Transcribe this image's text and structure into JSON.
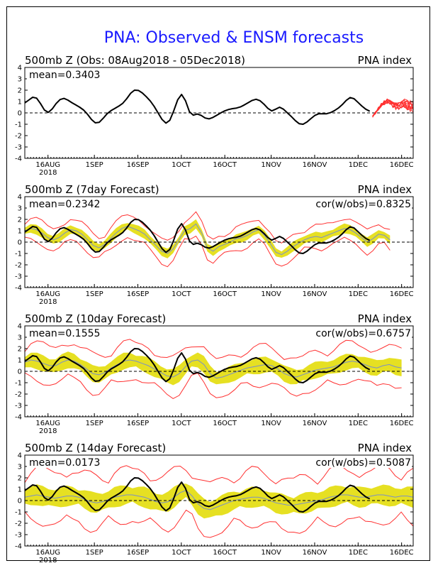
{
  "figure": {
    "title": "PNA: Observed & ENSM forecasts",
    "title_color": "#1a1aff"
  },
  "x_ticks": {
    "labels": [
      "16AUG",
      "1SEP",
      "16SEP",
      "1OCT",
      "16OCT",
      "1NOV",
      "16NOV",
      "1DEC",
      "16DEC"
    ],
    "year_label": "2018"
  },
  "colors": {
    "observed": "#000000",
    "ensemble_members": "#ff3030",
    "ensemble_spread": "#e6e022",
    "ensemble_mean": "#7a8fc8",
    "zero_line": "#000000"
  },
  "chart_data": [
    {
      "type": "line",
      "title_left": "500mb  Z  (Obs: 08Aug2018 - 05Dec2018)",
      "title_right": "PNA index",
      "stat_left": "mean=0.3403",
      "stat_right": "",
      "ylim": [
        -4,
        4
      ],
      "yticks": [
        -4,
        -3,
        -2,
        -1,
        0,
        1,
        2,
        3,
        4
      ],
      "x_start": "2018-08-08",
      "x_end": "2018-12-20",
      "tick_dates": [
        "2018-08-16",
        "2018-09-01",
        "2018-09-16",
        "2018-10-01",
        "2018-10-16",
        "2018-11-01",
        "2018-11-16",
        "2018-12-01",
        "2018-12-16"
      ],
      "observed": {
        "start": "2018-08-08",
        "values": [
          0.8,
          1.1,
          1.5,
          1.4,
          0.9,
          0.1,
          -0.1,
          0.3,
          0.9,
          1.2,
          1.4,
          1.1,
          0.9,
          0.7,
          0.5,
          0.3,
          -0.1,
          -0.6,
          -1.0,
          -0.9,
          -0.5,
          0.0,
          0.2,
          0.4,
          0.6,
          0.8,
          1.2,
          1.8,
          2.1,
          2.0,
          1.8,
          1.4,
          1.1,
          0.6,
          0.0,
          -0.6,
          -1.1,
          -0.8,
          0.1,
          1.3,
          1.9,
          1.4,
          -0.4,
          -0.2,
          0.0,
          -0.2,
          -0.5,
          -0.6,
          -0.4,
          -0.2,
          0.0,
          0.2,
          0.3,
          0.4,
          0.4,
          0.5,
          0.7,
          0.9,
          1.1,
          1.3,
          1.1,
          0.8,
          0.4,
          0.0,
          0.3,
          0.7,
          0.3,
          0.0,
          -0.3,
          -0.7,
          -1.0,
          -1.1,
          -0.8,
          -0.5,
          -0.2,
          0.0,
          -0.1,
          -0.1,
          0.0,
          0.2,
          0.4,
          0.7,
          1.1,
          1.5,
          1.3,
          0.9,
          0.6,
          0.3,
          0.1
        ]
      },
      "ensemble": {
        "start": "2018-12-06",
        "base": [
          -0.3,
          0.0,
          0.4,
          0.7,
          0.9,
          1.0,
          0.9,
          0.7,
          0.6,
          0.6,
          0.7,
          0.8,
          0.7,
          0.6,
          0.5
        ],
        "members": 10
      }
    },
    {
      "type": "line",
      "title_left": "500mb  Z  (7day Forecast)",
      "title_right": "PNA index",
      "stat_left": "mean=0.2342",
      "stat_right": "cor(w/obs)=0.8325",
      "ylim": [
        -4,
        4
      ],
      "yticks": [
        -4,
        -3,
        -2,
        -1,
        0,
        1,
        2,
        3,
        4
      ],
      "x_start": "2018-08-08",
      "x_end": "2018-12-20",
      "tick_dates": [
        "2018-08-16",
        "2018-09-01",
        "2018-09-16",
        "2018-10-01",
        "2018-10-16",
        "2018-11-01",
        "2018-11-16",
        "2018-12-01",
        "2018-12-16"
      ],
      "observed": {
        "start": "2018-08-08",
        "values": [
          0.8,
          1.1,
          1.5,
          1.4,
          0.9,
          0.1,
          -0.1,
          0.3,
          0.9,
          1.2,
          1.4,
          1.1,
          0.9,
          0.7,
          0.5,
          0.3,
          -0.1,
          -0.6,
          -1.0,
          -0.9,
          -0.5,
          0.0,
          0.2,
          0.4,
          0.6,
          0.8,
          1.2,
          1.8,
          2.1,
          2.0,
          1.8,
          1.4,
          1.1,
          0.6,
          0.0,
          -0.6,
          -1.1,
          -0.8,
          0.1,
          1.3,
          1.9,
          1.4,
          -0.4,
          -0.2,
          0.0,
          -0.2,
          -0.5,
          -0.6,
          -0.4,
          -0.2,
          0.0,
          0.2,
          0.3,
          0.4,
          0.4,
          0.5,
          0.7,
          0.9,
          1.1,
          1.3,
          1.1,
          0.8,
          0.4,
          0.0,
          0.3,
          0.7,
          0.3,
          0.0,
          -0.3,
          -0.7,
          -1.0,
          -1.1,
          -0.8,
          -0.5,
          -0.2,
          0.0,
          -0.1,
          -0.1,
          0.0,
          0.2,
          0.4,
          0.7,
          1.1,
          1.5,
          1.3,
          0.9,
          0.6,
          0.3,
          0.1
        ]
      },
      "forecast": {
        "start": "2018-08-08",
        "end": "2018-12-12",
        "mean_values": [
          1.0,
          1.2,
          1.1,
          0.8,
          0.4,
          0.2,
          0.4,
          0.8,
          1.1,
          1.0,
          0.7,
          0.2,
          -0.3,
          -0.5,
          -0.2,
          0.3,
          0.8,
          1.2,
          1.4,
          1.2,
          1.0,
          0.7,
          0.2,
          -0.3,
          -0.8,
          -1.0,
          -0.6,
          0.2,
          1.0,
          1.2,
          1.6,
          0.8,
          -0.5,
          -0.8,
          -0.4,
          -0.2,
          0.0,
          0.3,
          0.4,
          0.6,
          0.9,
          1.1,
          0.6,
          -0.1,
          -0.9,
          -1.1,
          -0.8,
          -0.4,
          -0.1,
          0.2,
          0.4,
          0.5,
          0.4,
          0.6,
          0.8,
          1.0,
          1.2,
          1.1,
          0.8,
          0.4,
          0.0,
          0.3,
          0.7,
          0.6,
          0.2
        ],
        "spread": 0.35,
        "member_spread": 0.75
      }
    },
    {
      "type": "line",
      "title_left": "500mb  Z  (10day Forecast)",
      "title_right": "PNA index",
      "stat_left": "mean=0.1555",
      "stat_right": "cor(w/obs)=0.6757",
      "ylim": [
        -4,
        4
      ],
      "yticks": [
        -4,
        -3,
        -2,
        -1,
        0,
        1,
        2,
        3,
        4
      ],
      "x_start": "2018-08-08",
      "x_end": "2018-12-20",
      "tick_dates": [
        "2018-08-16",
        "2018-09-01",
        "2018-09-16",
        "2018-10-01",
        "2018-10-16",
        "2018-11-01",
        "2018-11-16",
        "2018-12-01",
        "2018-12-16"
      ],
      "observed": {
        "start": "2018-08-08",
        "values": [
          0.8,
          1.1,
          1.5,
          1.4,
          0.9,
          0.1,
          -0.1,
          0.3,
          0.9,
          1.2,
          1.4,
          1.1,
          0.9,
          0.7,
          0.5,
          0.3,
          -0.1,
          -0.6,
          -1.0,
          -0.9,
          -0.5,
          0.0,
          0.2,
          0.4,
          0.6,
          0.8,
          1.2,
          1.8,
          2.1,
          2.0,
          1.8,
          1.4,
          1.1,
          0.6,
          0.0,
          -0.6,
          -1.1,
          -0.8,
          0.1,
          1.3,
          1.9,
          1.4,
          -0.4,
          -0.2,
          0.0,
          -0.2,
          -0.5,
          -0.6,
          -0.4,
          -0.2,
          0.0,
          0.2,
          0.3,
          0.4,
          0.4,
          0.5,
          0.7,
          0.9,
          1.1,
          1.3,
          1.1,
          0.8,
          0.4,
          0.0,
          0.3,
          0.7,
          0.3,
          0.0,
          -0.3,
          -0.7,
          -1.0,
          -1.1,
          -0.8,
          -0.5,
          -0.2,
          0.0,
          -0.1,
          -0.1,
          0.0,
          0.2,
          0.4,
          0.7,
          1.1,
          1.5,
          1.3,
          0.9,
          0.6,
          0.3,
          0.1
        ]
      },
      "forecast": {
        "start": "2018-08-08",
        "end": "2018-12-16",
        "mean_values": [
          0.8,
          1.0,
          0.9,
          0.7,
          0.5,
          0.5,
          0.8,
          1.0,
          0.9,
          0.6,
          0.2,
          -0.2,
          -0.3,
          -0.1,
          0.3,
          0.6,
          0.9,
          1.0,
          0.9,
          0.7,
          0.5,
          0.2,
          -0.1,
          -0.4,
          -0.5,
          -0.2,
          0.4,
          0.9,
          1.0,
          0.6,
          -0.2,
          -0.6,
          -0.5,
          -0.3,
          -0.1,
          0.1,
          0.3,
          0.4,
          0.5,
          0.6,
          0.5,
          0.2,
          -0.2,
          -0.4,
          -0.5,
          -0.3,
          -0.1,
          0.1,
          0.2,
          0.3,
          0.4,
          0.6,
          0.8,
          0.9,
          0.8,
          0.6,
          0.4,
          0.3,
          0.5,
          0.6,
          0.4,
          0.3
        ],
        "spread": 0.6,
        "member_spread": 1.2
      }
    },
    {
      "type": "line",
      "title_left": "500mb  Z  (14day Forecast)",
      "title_right": "PNA index",
      "stat_left": "mean=0.0173",
      "stat_right": "cor(w/obs)=0.5087",
      "ylim": [
        -4,
        4
      ],
      "yticks": [
        -4,
        -3,
        -2,
        -1,
        0,
        1,
        2,
        3,
        4
      ],
      "x_start": "2018-08-08",
      "x_end": "2018-12-20",
      "tick_dates": [
        "2018-08-16",
        "2018-09-01",
        "2018-09-16",
        "2018-10-01",
        "2018-10-16",
        "2018-11-01",
        "2018-11-16",
        "2018-12-01",
        "2018-12-16"
      ],
      "observed": {
        "start": "2018-08-08",
        "values": [
          0.8,
          1.1,
          1.5,
          1.4,
          0.9,
          0.1,
          -0.1,
          0.3,
          0.9,
          1.2,
          1.4,
          1.1,
          0.9,
          0.7,
          0.5,
          0.3,
          -0.1,
          -0.6,
          -1.0,
          -0.9,
          -0.5,
          0.0,
          0.2,
          0.4,
          0.6,
          0.8,
          1.2,
          1.8,
          2.1,
          2.0,
          1.8,
          1.4,
          1.1,
          0.6,
          0.0,
          -0.6,
          -1.1,
          -0.8,
          0.1,
          1.3,
          1.9,
          1.4,
          -0.4,
          -0.2,
          0.0,
          -0.2,
          -0.5,
          -0.6,
          -0.4,
          -0.2,
          0.0,
          0.2,
          0.3,
          0.4,
          0.4,
          0.5,
          0.7,
          0.9,
          1.1,
          1.3,
          1.1,
          0.8,
          0.4,
          0.0,
          0.3,
          0.7,
          0.3,
          0.0,
          -0.3,
          -0.7,
          -1.0,
          -1.1,
          -0.8,
          -0.5,
          -0.2,
          0.0,
          -0.1,
          -0.1,
          0.0,
          0.2,
          0.4,
          0.7,
          1.1,
          1.5,
          1.3,
          0.9,
          0.6,
          0.3,
          0.1
        ]
      },
      "forecast": {
        "start": "2018-08-08",
        "end": "2018-12-20",
        "mean_values": [
          0.3,
          0.4,
          0.5,
          0.4,
          0.3,
          0.2,
          0.3,
          0.4,
          0.4,
          0.3,
          0.1,
          -0.1,
          -0.2,
          -0.1,
          0.1,
          0.3,
          0.4,
          0.5,
          0.5,
          0.4,
          0.3,
          0.1,
          -0.1,
          -0.2,
          -0.1,
          0.3,
          0.7,
          0.9,
          0.4,
          -0.3,
          -0.7,
          -0.8,
          -0.6,
          -0.4,
          -0.2,
          0.0,
          0.1,
          0.2,
          0.3,
          0.3,
          0.2,
          0.0,
          -0.2,
          -0.3,
          -0.4,
          -0.4,
          -0.3,
          -0.2,
          -0.1,
          0.0,
          0.1,
          0.3,
          0.4,
          0.5,
          0.5,
          0.4,
          0.3,
          0.3,
          0.4,
          0.5,
          0.5,
          0.4,
          0.3,
          0.4,
          0.4,
          0.3
        ],
        "spread": 0.75,
        "member_spread": 1.8
      }
    }
  ]
}
